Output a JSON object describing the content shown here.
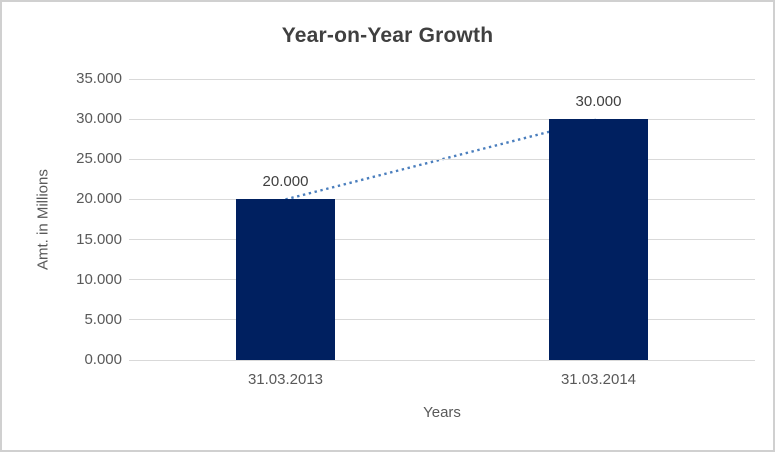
{
  "chart_data": {
    "type": "bar",
    "title": "Year-on-Year Growth",
    "xlabel": "Years",
    "ylabel": "Amt. in Millions",
    "categories": [
      "31.03.2013",
      "31.03.2014"
    ],
    "values": [
      20,
      30
    ],
    "value_labels": [
      "20.000",
      "30.000"
    ],
    "ylim": [
      0,
      35
    ],
    "ytick_step": 5,
    "ytick_labels": [
      "0.000",
      "5.000",
      "10.000",
      "15.000",
      "20.000",
      "25.000",
      "30.000",
      "35.000"
    ],
    "grid": true,
    "legend": "none",
    "trendline": {
      "style": "dotted",
      "connects": [
        20,
        30
      ]
    },
    "colors": {
      "bar": "#002060",
      "trendline": "#4a7ebd",
      "gridline": "#d9d9d9",
      "title_text": "#404040",
      "axis_text": "#595959",
      "data_label_text": "#404040",
      "frame_border": "#d0d0d0"
    }
  }
}
